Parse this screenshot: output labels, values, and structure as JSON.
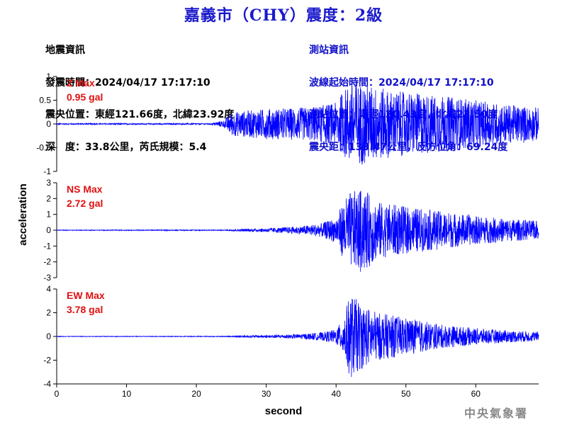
{
  "title": "嘉義市（CHY）震度：2級",
  "info_left": [
    "地震資訊",
    "發震時間：2024/04/17 17:17:10",
    "震央位置：東經121.66度，北緯23.92度",
    "深　度：33.8公里，芮氏規模：5.4"
  ],
  "info_right": [
    "測站資訊",
    "波線起始時間：2024/04/17 17:17:10",
    "測站位置：東經120.43度，北緯23.50度",
    "震央距：133.47公里，反方位角：69.24度"
  ],
  "watermark": "中央氣象署",
  "colors": {
    "trace": "#0000ff",
    "label": "#e01010",
    "title": "#1a1acc"
  },
  "chart_data": [
    {
      "type": "line",
      "name_label": "Z Max",
      "max_label": "0.95 gal",
      "ylim": [
        -1,
        1
      ],
      "yticks": [
        -1,
        -0.5,
        0,
        0.5,
        1
      ],
      "ytick_labels": [
        "-1",
        "-0.5",
        "0",
        "0.5",
        "1"
      ],
      "xlim": [
        0,
        69
      ],
      "peak": 0.95,
      "envelope": [
        [
          0,
          0.012
        ],
        [
          22,
          0.015
        ],
        [
          24,
          0.08
        ],
        [
          25,
          0.25
        ],
        [
          30,
          0.32
        ],
        [
          36,
          0.35
        ],
        [
          40,
          0.45
        ],
        [
          42,
          0.9
        ],
        [
          44,
          0.85
        ],
        [
          48,
          0.7
        ],
        [
          55,
          0.6
        ],
        [
          60,
          0.5
        ],
        [
          65,
          0.4
        ],
        [
          69,
          0.35
        ]
      ]
    },
    {
      "type": "line",
      "name_label": "NS Max",
      "max_label": "2.72 gal",
      "ylim": [
        -3,
        3
      ],
      "yticks": [
        -3,
        -2,
        -1,
        0,
        1,
        2,
        3
      ],
      "ytick_labels": [
        "-3",
        "-2",
        "-1",
        "0",
        "1",
        "2",
        "3"
      ],
      "xlim": [
        0,
        69
      ],
      "peak": 2.72,
      "envelope": [
        [
          0,
          0.02
        ],
        [
          24,
          0.03
        ],
        [
          26,
          0.07
        ],
        [
          30,
          0.12
        ],
        [
          35,
          0.25
        ],
        [
          38,
          0.45
        ],
        [
          40,
          0.8
        ],
        [
          41,
          1.8
        ],
        [
          42,
          2.4
        ],
        [
          44,
          2.6
        ],
        [
          46,
          1.8
        ],
        [
          50,
          1.5
        ],
        [
          55,
          1.2
        ],
        [
          60,
          0.9
        ],
        [
          65,
          0.7
        ],
        [
          69,
          0.6
        ]
      ]
    },
    {
      "type": "line",
      "name_label": "EW Max",
      "max_label": "3.78 gal",
      "ylim": [
        -4,
        4
      ],
      "yticks": [
        -4,
        -2,
        0,
        2,
        4
      ],
      "ytick_labels": [
        "-4",
        "-2",
        "0",
        "2",
        "4"
      ],
      "xlim": [
        0,
        69
      ],
      "peak": 3.78,
      "envelope": [
        [
          0,
          0.02
        ],
        [
          25,
          0.03
        ],
        [
          26,
          0.08
        ],
        [
          30,
          0.12
        ],
        [
          35,
          0.2
        ],
        [
          38,
          0.35
        ],
        [
          40,
          0.6
        ],
        [
          41,
          1.5
        ],
        [
          42,
          3.6
        ],
        [
          44,
          2.6
        ],
        [
          46,
          2.0
        ],
        [
          50,
          1.6
        ],
        [
          55,
          1.0
        ],
        [
          60,
          0.7
        ],
        [
          65,
          0.5
        ],
        [
          69,
          0.4
        ]
      ]
    }
  ],
  "x_axis": {
    "ticks": [
      0,
      10,
      20,
      30,
      40,
      50,
      60
    ],
    "tick_labels": [
      "0",
      "10",
      "20",
      "30",
      "40",
      "50",
      "60"
    ],
    "label": "second"
  },
  "y_axis": {
    "label": "acceleration"
  }
}
